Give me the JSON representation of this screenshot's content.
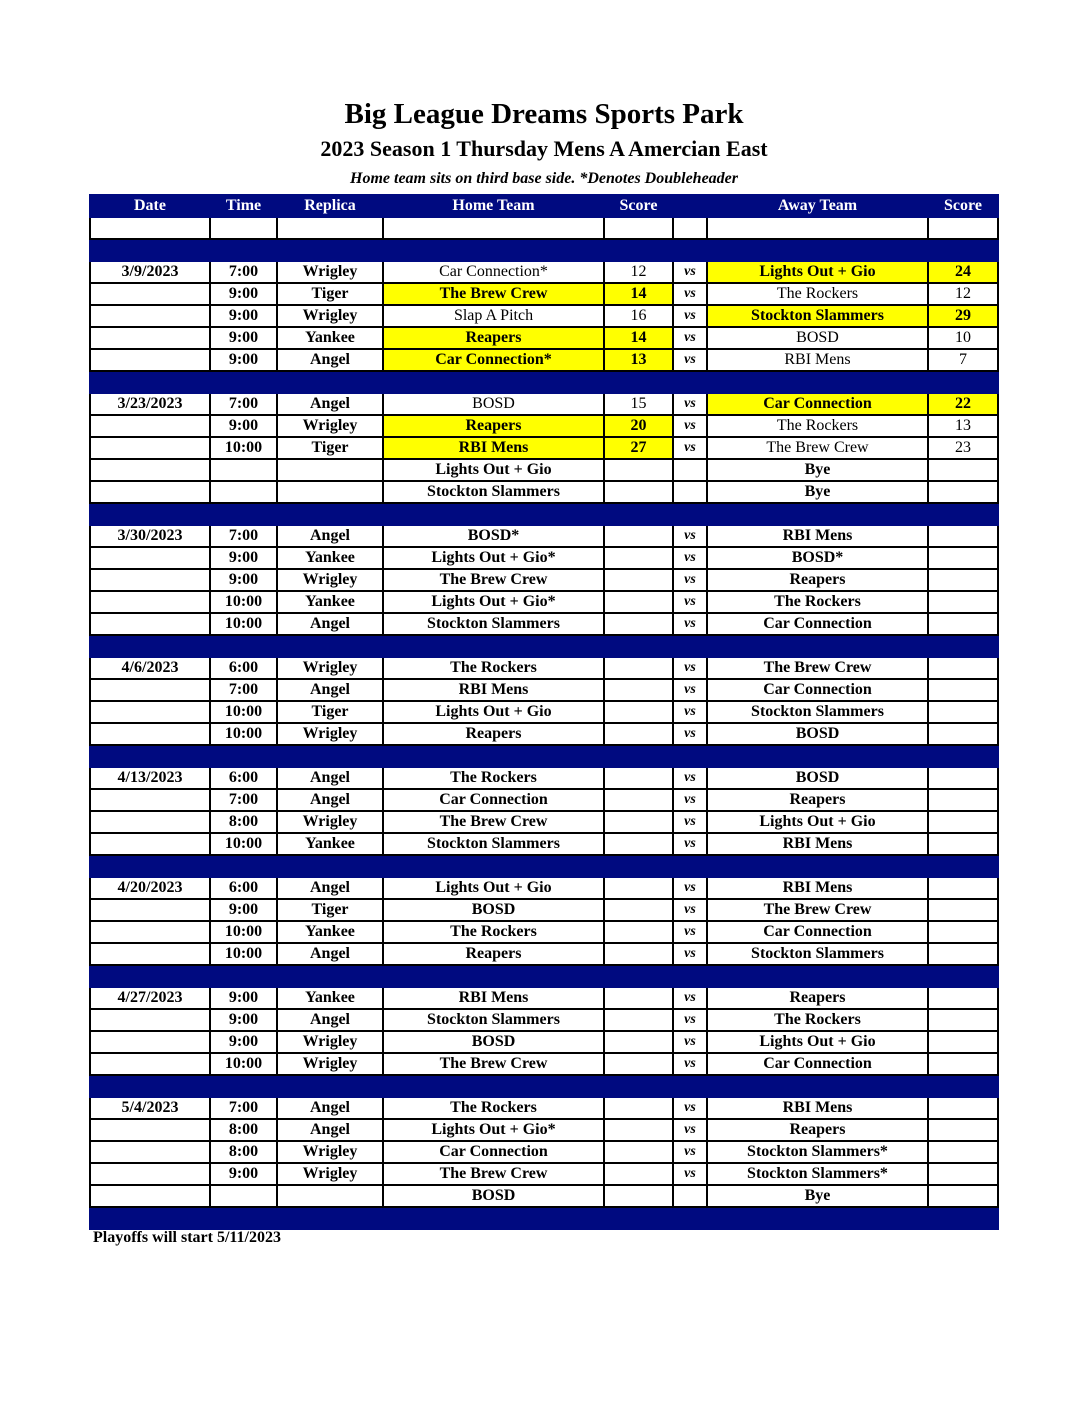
{
  "title": "Big League Dreams Sports Park",
  "subtitle": "2023 Season 1 Thursday Mens A Amercian East",
  "note": "Home team sits on third base side.  *Denotes Doubleheader",
  "highlight_color": "#ffff00",
  "header_color": "#000a80",
  "columns": [
    "Date",
    "Time",
    "Replica",
    "Home Team",
    "Score",
    "",
    "Away Team",
    "Score"
  ],
  "vs_label": "vs",
  "weeks": [
    {
      "date": "3/9/2023",
      "games": [
        {
          "time": "7:00",
          "replica": "Wrigley",
          "home": "Car Connection*",
          "home_score": "12",
          "away": "Lights Out + Gio",
          "away_score": "24",
          "winner": "away"
        },
        {
          "time": "9:00",
          "replica": "Tiger",
          "home": "The Brew Crew",
          "home_score": "14",
          "away": "The Rockers",
          "away_score": "12",
          "winner": "home"
        },
        {
          "time": "9:00",
          "replica": "Wrigley",
          "home": "Slap A Pitch",
          "home_score": "16",
          "away": "Stockton Slammers",
          "away_score": "29",
          "winner": "away"
        },
        {
          "time": "9:00",
          "replica": "Yankee",
          "home": "Reapers",
          "home_score": "14",
          "away": "BOSD",
          "away_score": "10",
          "winner": "home"
        },
        {
          "time": "9:00",
          "replica": "Angel",
          "home": "Car Connection*",
          "home_score": "13",
          "away": "RBI Mens",
          "away_score": "7",
          "winner": "home"
        }
      ]
    },
    {
      "date": "3/23/2023",
      "games": [
        {
          "time": "7:00",
          "replica": "Angel",
          "home": "BOSD",
          "home_score": "15",
          "away": "Car Connection",
          "away_score": "22",
          "winner": "away"
        },
        {
          "time": "9:00",
          "replica": "Wrigley",
          "home": "Reapers",
          "home_score": "20",
          "away": "The Rockers",
          "away_score": "13",
          "winner": "home"
        },
        {
          "time": "10:00",
          "replica": "Tiger",
          "home": "RBI Mens",
          "home_score": "27",
          "away": "The Brew Crew",
          "away_score": "23",
          "winner": "home"
        },
        {
          "time": "",
          "replica": "",
          "home": "Lights Out + Gio",
          "home_score": "",
          "away": "Bye",
          "away_score": "",
          "bye": true
        },
        {
          "time": "",
          "replica": "",
          "home": "Stockton Slammers",
          "home_score": "",
          "away": "Bye",
          "away_score": "",
          "bye": true
        }
      ]
    },
    {
      "date": "3/30/2023",
      "games": [
        {
          "time": "7:00",
          "replica": "Angel",
          "home": "BOSD*",
          "home_score": "",
          "away": "RBI Mens",
          "away_score": ""
        },
        {
          "time": "9:00",
          "replica": "Yankee",
          "home": "Lights Out + Gio*",
          "home_score": "",
          "away": "BOSD*",
          "away_score": ""
        },
        {
          "time": "9:00",
          "replica": "Wrigley",
          "home": "The Brew Crew",
          "home_score": "",
          "away": "Reapers",
          "away_score": ""
        },
        {
          "time": "10:00",
          "replica": "Yankee",
          "home": "Lights Out + Gio*",
          "home_score": "",
          "away": "The Rockers",
          "away_score": ""
        },
        {
          "time": "10:00",
          "replica": "Angel",
          "home": "Stockton Slammers",
          "home_score": "",
          "away": "Car Connection",
          "away_score": ""
        }
      ]
    },
    {
      "date": "4/6/2023",
      "games": [
        {
          "time": "6:00",
          "replica": "Wrigley",
          "home": "The Rockers",
          "home_score": "",
          "away": "The Brew Crew",
          "away_score": ""
        },
        {
          "time": "7:00",
          "replica": "Angel",
          "home": "RBI Mens",
          "home_score": "",
          "away": "Car Connection",
          "away_score": ""
        },
        {
          "time": "10:00",
          "replica": "Tiger",
          "home": "Lights Out + Gio",
          "home_score": "",
          "away": "Stockton Slammers",
          "away_score": ""
        },
        {
          "time": "10:00",
          "replica": "Wrigley",
          "home": "Reapers",
          "home_score": "",
          "away": "BOSD",
          "away_score": ""
        }
      ]
    },
    {
      "date": "4/13/2023",
      "games": [
        {
          "time": "6:00",
          "replica": "Angel",
          "home": "The Rockers",
          "home_score": "",
          "away": "BOSD",
          "away_score": ""
        },
        {
          "time": "7:00",
          "replica": "Angel",
          "home": "Car Connection",
          "home_score": "",
          "away": "Reapers",
          "away_score": ""
        },
        {
          "time": "8:00",
          "replica": "Wrigley",
          "home": "The Brew Crew",
          "home_score": "",
          "away": "Lights Out + Gio",
          "away_score": ""
        },
        {
          "time": "10:00",
          "replica": "Yankee",
          "home": "Stockton Slammers",
          "home_score": "",
          "away": "RBI Mens",
          "away_score": ""
        }
      ]
    },
    {
      "date": "4/20/2023",
      "games": [
        {
          "time": "6:00",
          "replica": "Angel",
          "home": "Lights Out + Gio",
          "home_score": "",
          "away": "RBI Mens",
          "away_score": ""
        },
        {
          "time": "9:00",
          "replica": "Tiger",
          "home": "BOSD",
          "home_score": "",
          "away": "The Brew Crew",
          "away_score": ""
        },
        {
          "time": "10:00",
          "replica": "Yankee",
          "home": "The Rockers",
          "home_score": "",
          "away": "Car Connection",
          "away_score": ""
        },
        {
          "time": "10:00",
          "replica": "Angel",
          "home": "Reapers",
          "home_score": "",
          "away": "Stockton Slammers",
          "away_score": ""
        }
      ]
    },
    {
      "date": "4/27/2023",
      "games": [
        {
          "time": "9:00",
          "replica": "Yankee",
          "home": "RBI Mens",
          "home_score": "",
          "away": "Reapers",
          "away_score": ""
        },
        {
          "time": "9:00",
          "replica": "Angel",
          "home": "Stockton Slammers",
          "home_score": "",
          "away": "The Rockers",
          "away_score": ""
        },
        {
          "time": "9:00",
          "replica": "Wrigley",
          "home": "BOSD",
          "home_score": "",
          "away": "Lights Out + Gio",
          "away_score": ""
        },
        {
          "time": "10:00",
          "replica": "Wrigley",
          "home": "The Brew Crew",
          "home_score": "",
          "away": "Car Connection",
          "away_score": ""
        }
      ]
    },
    {
      "date": "5/4/2023",
      "games": [
        {
          "time": "7:00",
          "replica": "Angel",
          "home": "The Rockers",
          "home_score": "",
          "away": "RBI Mens",
          "away_score": ""
        },
        {
          "time": "8:00",
          "replica": "Angel",
          "home": "Lights Out + Gio*",
          "home_score": "",
          "away": "Reapers",
          "away_score": ""
        },
        {
          "time": "8:00",
          "replica": "Wrigley",
          "home": "Car Connection",
          "home_score": "",
          "away": "Stockton Slammers*",
          "away_score": ""
        },
        {
          "time": "9:00",
          "replica": "Wrigley",
          "home": "The Brew Crew",
          "home_score": "",
          "away": "Stockton Slammers*",
          "away_score": ""
        },
        {
          "time": "",
          "replica": "",
          "home": "BOSD",
          "home_score": "",
          "away": "Bye",
          "away_score": "",
          "bye": true
        }
      ]
    }
  ],
  "footer": "Playoffs will start 5/11/2023"
}
